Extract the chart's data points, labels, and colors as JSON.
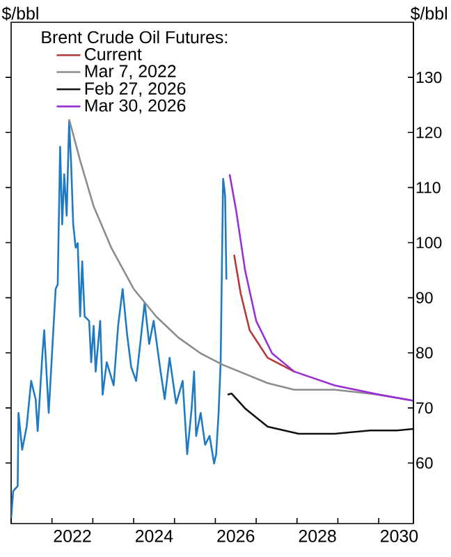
{
  "chart_data": {
    "type": "line",
    "legend_title": "Brent Crude Oil Futures:",
    "ylabel": "$/bbl",
    "y2label": "$/bbl",
    "legend": "top left",
    "xlim": [
      2021,
      2030.85
    ],
    "y2lim": [
      49,
      140
    ],
    "xticks": [
      {
        "value": 2021,
        "label": null
      },
      {
        "value": 2022,
        "label": null
      },
      {
        "value": 2023,
        "label": null
      },
      {
        "value": 2024,
        "label": null
      },
      {
        "value": 2025,
        "label": null
      },
      {
        "value": 2026,
        "label": null
      },
      {
        "value": 2027,
        "label": null
      },
      {
        "value": 2028,
        "label": null
      },
      {
        "value": 2029,
        "label": null
      },
      {
        "value": 2030,
        "label": null
      },
      {
        "value": 2022.5,
        "label": "2022"
      },
      {
        "value": 2024.5,
        "label": "2024"
      },
      {
        "value": 2026.5,
        "label": "2026"
      },
      {
        "value": 2028.5,
        "label": "2028"
      },
      {
        "value": 2030.5,
        "label": "2030"
      }
    ],
    "y2ticks": [
      60,
      70,
      80,
      90,
      100,
      110,
      120,
      130
    ],
    "series": [
      {
        "color": "#1f7ac4",
        "axis": "y2",
        "x": [
          2021.0,
          2021.05,
          2021.16,
          2021.18,
          2021.27,
          2021.38,
          2021.49,
          2021.6,
          2021.65,
          2021.76,
          2021.81,
          2021.92,
          2022.09,
          2022.14,
          2022.2,
          2022.25,
          2022.3,
          2022.36,
          2022.42,
          2022.47,
          2022.52,
          2022.58,
          2022.63,
          2022.69,
          2022.74,
          2022.8,
          2022.91,
          2022.96,
          2023.02,
          2023.07,
          2023.18,
          2023.24,
          2023.34,
          2023.51,
          2023.62,
          2023.73,
          2023.84,
          2023.94,
          2024.06,
          2024.16,
          2024.27,
          2024.38,
          2024.49,
          2024.66,
          2024.76,
          2024.88,
          2025.04,
          2025.2,
          2025.31,
          2025.42,
          2025.48,
          2025.53,
          2025.64,
          2025.75,
          2025.86,
          2025.97,
          2026.02,
          2026.08,
          2026.13,
          2026.19,
          2026.22,
          2026.24,
          2026.27
        ],
        "values": [
          50,
          54.9,
          55.8,
          69.1,
          62.4,
          66.6,
          74.9,
          71.6,
          65.8,
          79.1,
          84.1,
          69.1,
          91.6,
          92.4,
          117.4,
          103.3,
          112.4,
          104.9,
          122,
          114.1,
          103.3,
          99.1,
          99.9,
          86.6,
          96.6,
          86.6,
          85.8,
          78.3,
          84.9,
          76.6,
          85.8,
          72.4,
          78.3,
          74.1,
          84.9,
          91.6,
          83.3,
          77.4,
          74.9,
          81.6,
          89.1,
          81.6,
          85.8,
          76.6,
          71.6,
          79.1,
          70.8,
          74.9,
          61.6,
          69.9,
          76.6,
          64.9,
          69.1,
          63.3,
          64.9,
          59.9,
          61.6,
          69.1,
          78.3,
          111.6,
          109.9,
          108.3,
          93.3
        ]
      },
      {
        "name": "Current",
        "color": "#b5373a",
        "axis": "y2",
        "x": [
          2026.46,
          2026.62,
          2026.84,
          2027.28,
          2027.93
        ],
        "values": [
          97.8,
          90.8,
          84.1,
          79.1,
          76.6
        ]
      },
      {
        "name": "Mar 7, 2022",
        "color": "#8c8c8c",
        "axis": "y2",
        "x": [
          2022.42,
          2022.69,
          2023.02,
          2023.45,
          2024.0,
          2024.55,
          2025.09,
          2025.64,
          2026.19,
          2027.28,
          2027.93,
          2028.92,
          2030.01,
          2030.85
        ],
        "values": [
          122.4,
          114.9,
          106.6,
          99.1,
          91.6,
          86.6,
          82.8,
          79.9,
          77.8,
          74.5,
          73.3,
          73.3,
          72.4,
          71.3
        ]
      },
      {
        "name": "Feb 27, 2026",
        "color": "#111111",
        "axis": "y2",
        "x": [
          2026.3,
          2026.4,
          2026.73,
          2027.28,
          2028.04,
          2028.92,
          2029.79,
          2030.45,
          2030.85
        ],
        "values": [
          72.4,
          72.6,
          69.9,
          66.6,
          65.3,
          65.3,
          65.9,
          65.9,
          66.2
        ]
      },
      {
        "name": "Mar 30, 2026",
        "color": "#9b2fd6",
        "axis": "y2",
        "x": [
          2026.35,
          2026.51,
          2026.73,
          2027.0,
          2027.39,
          2027.93,
          2028.92,
          2030.01,
          2030.85
        ],
        "values": [
          112.4,
          105.8,
          94.9,
          85.8,
          79.9,
          76.6,
          74.1,
          72.4,
          71.3
        ]
      }
    ]
  }
}
